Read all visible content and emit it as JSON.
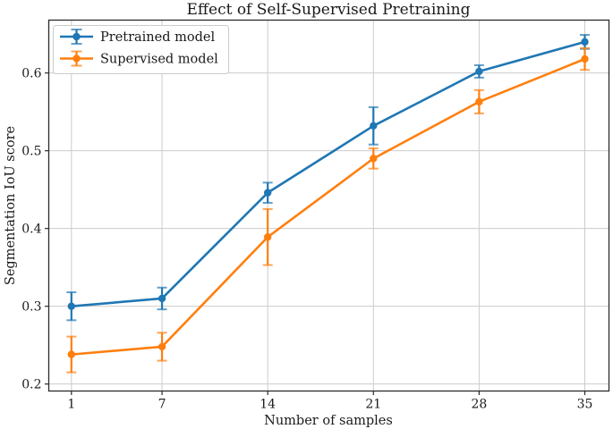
{
  "chart_data": {
    "type": "line",
    "title": "Effect of Self-Supervised Pretraining",
    "xlabel": "Number of samples",
    "ylabel": "Segmentation IoU score",
    "x": [
      1,
      7,
      14,
      21,
      28,
      35
    ],
    "xtick_labels": [
      "1",
      "7",
      "14",
      "21",
      "28",
      "35"
    ],
    "ytick_values": [
      0.2,
      0.3,
      0.4,
      0.5,
      0.6
    ],
    "ytick_labels": [
      "0.2",
      "0.3",
      "0.4",
      "0.5",
      "0.6"
    ],
    "xlim": [
      -0.5,
      36.6
    ],
    "ylim": [
      0.191,
      0.668
    ],
    "grid": true,
    "legend_position": "upper left",
    "series": [
      {
        "name": "Pretrained model",
        "color": "#1f77b4",
        "marker": "circle",
        "values": [
          0.3,
          0.31,
          0.446,
          0.532,
          0.602,
          0.64
        ],
        "yerr": [
          0.018,
          0.014,
          0.013,
          0.024,
          0.008,
          0.009
        ]
      },
      {
        "name": "Supervised model",
        "color": "#ff7f0e",
        "marker": "circle",
        "values": [
          0.238,
          0.248,
          0.389,
          0.49,
          0.563,
          0.618
        ],
        "yerr": [
          0.023,
          0.018,
          0.036,
          0.013,
          0.015,
          0.014
        ]
      }
    ]
  },
  "style": {
    "background": "#ffffff",
    "grid": "#cccccc",
    "spine": "#2b2b2b",
    "text": "#1a1a1a",
    "legend_bg": "#ffffff",
    "legend_border": "#cccccc"
  }
}
